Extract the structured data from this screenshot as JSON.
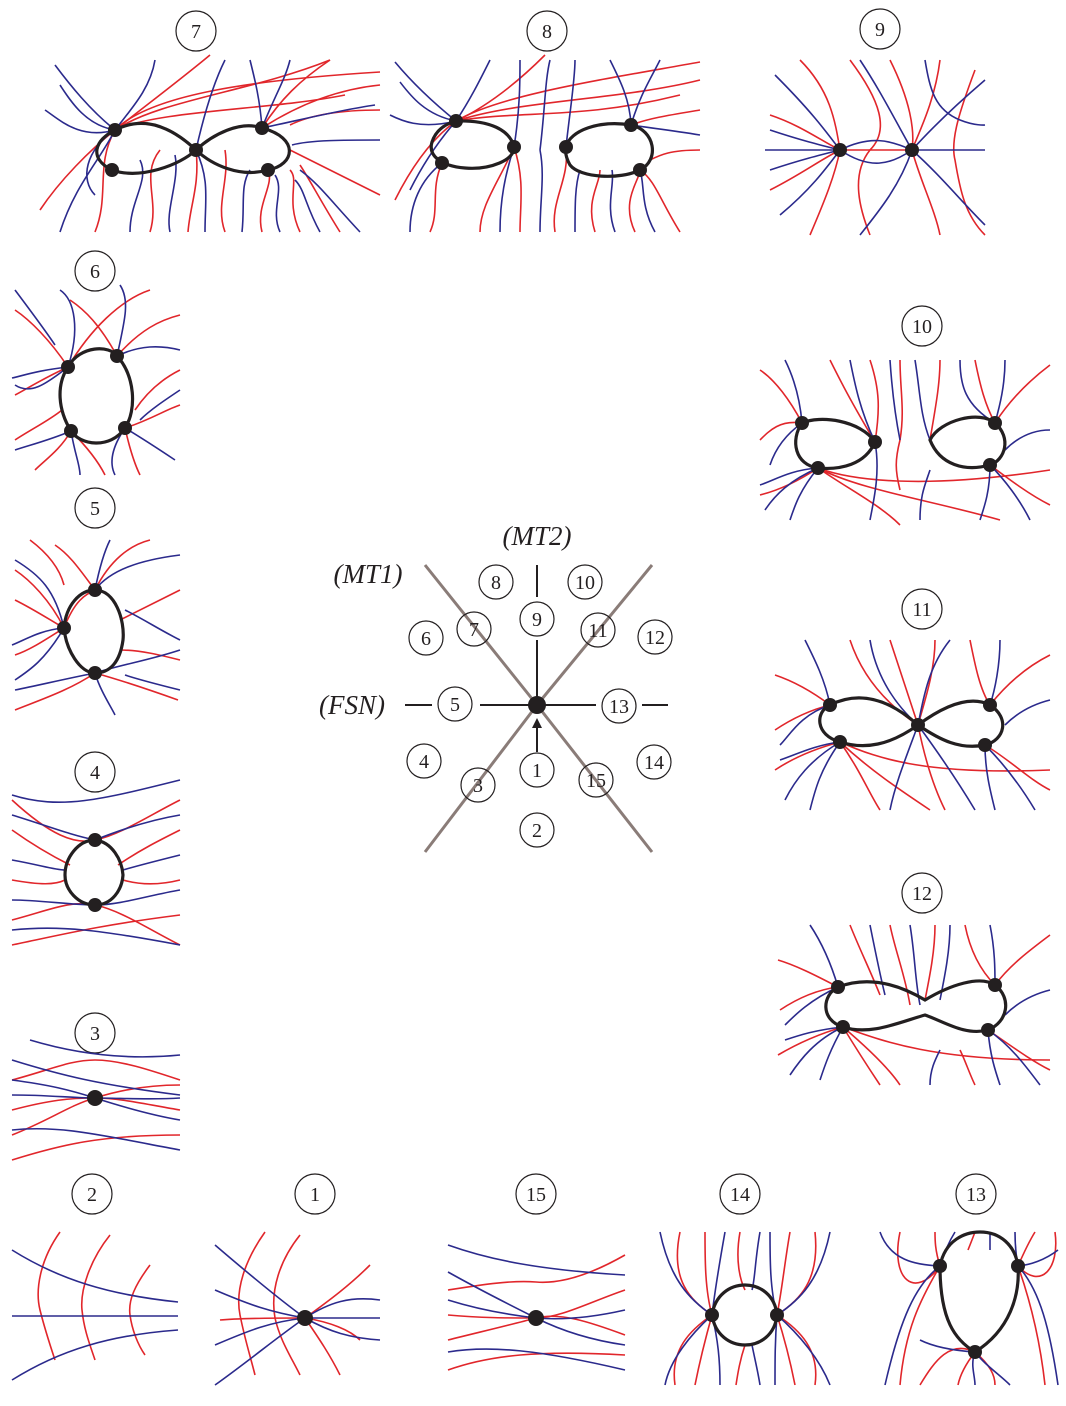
{
  "panels": [
    {
      "id": "7",
      "label": "7"
    },
    {
      "id": "8",
      "label": "8"
    },
    {
      "id": "9",
      "label": "9"
    },
    {
      "id": "6",
      "label": "6"
    },
    {
      "id": "10",
      "label": "10"
    },
    {
      "id": "5",
      "label": "5"
    },
    {
      "id": "11",
      "label": "11"
    },
    {
      "id": "4",
      "label": "4"
    },
    {
      "id": "12",
      "label": "12"
    },
    {
      "id": "3",
      "label": "3"
    },
    {
      "id": "2",
      "label": "2"
    },
    {
      "id": "1",
      "label": "1"
    },
    {
      "id": "15",
      "label": "15"
    },
    {
      "id": "14",
      "label": "14"
    },
    {
      "id": "13",
      "label": "13"
    }
  ],
  "center": {
    "labels": {
      "mt1": "(MT1)",
      "mt2": "(MT2)",
      "fsn": "(FSN)"
    },
    "regions": [
      "8",
      "9",
      "10",
      "7",
      "11",
      "6",
      "12",
      "5",
      "13",
      "4",
      "3",
      "1",
      "15",
      "14",
      "2"
    ]
  },
  "colors": {
    "curve_family_a": "#e1262b",
    "curve_family_b": "#2b2a8c",
    "singular_curve": "#231f20",
    "rays": "#8a7c78"
  }
}
